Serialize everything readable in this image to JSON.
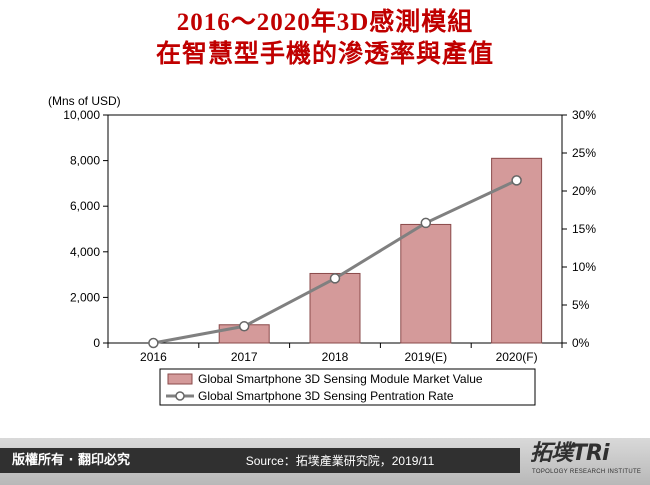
{
  "title_line1": "2016～2020年3D感測模組",
  "title_line2": "在智慧型手機的滲透率與產值",
  "footer": {
    "rights": "版權所有 · 翻印必究",
    "source": "Source：拓墣產業研究院，2019/11"
  },
  "logo": {
    "main": "拓墣TRi",
    "sub": "TOPOLOGY RESEARCH INSTITUTE"
  },
  "chart_data": {
    "type": "bar",
    "categories": [
      "2016",
      "2017",
      "2018",
      "2019(E)",
      "2020(F)"
    ],
    "unit_label": "(Mns of USD)",
    "y_ticks": [
      "0",
      "2,000",
      "4,000",
      "6,000",
      "8,000",
      "10,000"
    ],
    "y2_ticks": [
      "0%",
      "5%",
      "10%",
      "15%",
      "20%",
      "25%",
      "30%"
    ],
    "ylim": [
      0,
      10000
    ],
    "y2lim": [
      0,
      30
    ],
    "series": [
      {
        "name": "Global Smartphone 3D Sensing Module Market Value",
        "type": "bar",
        "axis": "left",
        "color": "#d49a9a",
        "values": [
          0,
          800,
          3050,
          5200,
          8100
        ]
      },
      {
        "name": "Global Smartphone 3D Sensing Pentration Rate",
        "type": "line",
        "axis": "right",
        "color": "#808080",
        "values": [
          0,
          2.2,
          8.5,
          15.8,
          21.4
        ]
      }
    ],
    "legend_position": "bottom",
    "grid": false
  }
}
